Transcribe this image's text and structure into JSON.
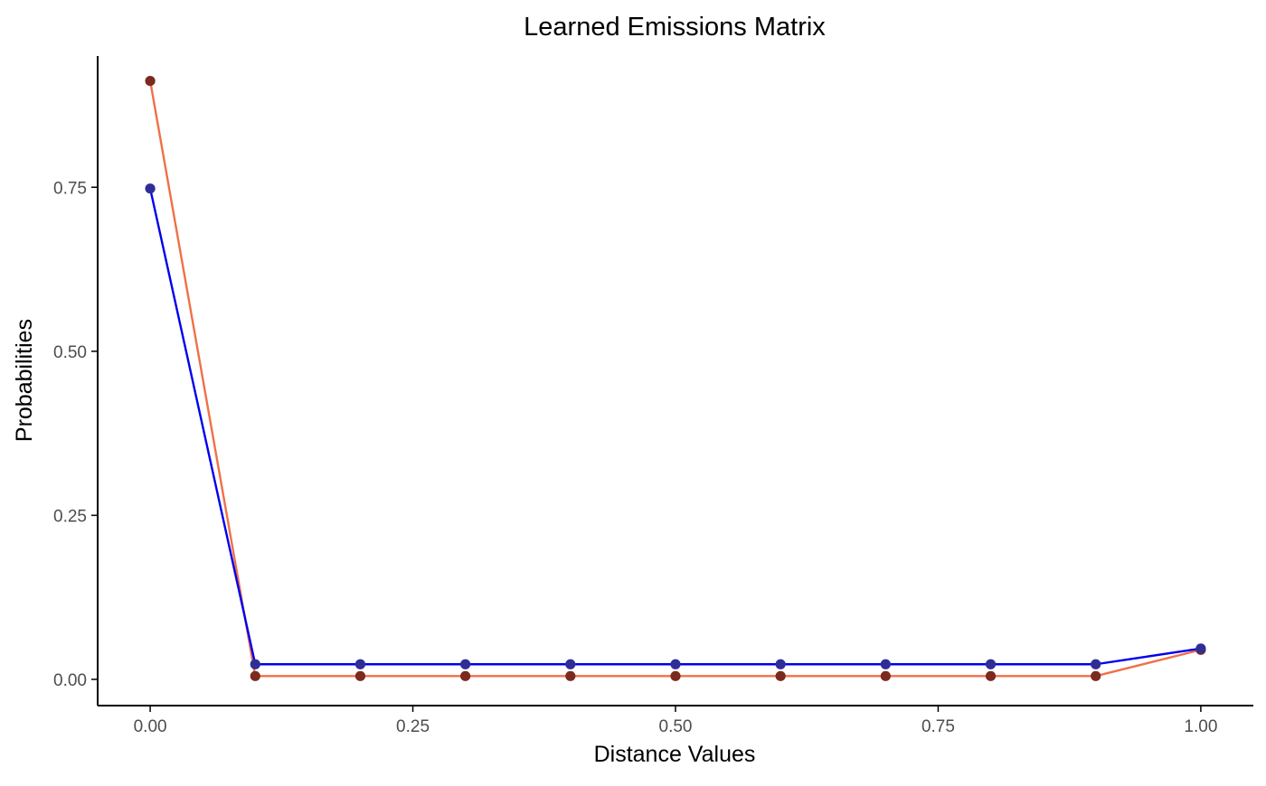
{
  "chart_data": {
    "type": "line",
    "title": "Learned Emissions Matrix",
    "xlabel": "Distance Values",
    "ylabel": "Probabilities",
    "xlim": [
      -0.05,
      1.05
    ],
    "ylim": [
      -0.04,
      0.95
    ],
    "x_ticks": [
      0.0,
      0.25,
      0.5,
      0.75,
      1.0
    ],
    "x_tick_labels": [
      "0.00",
      "0.25",
      "0.50",
      "0.75",
      "1.00"
    ],
    "y_ticks": [
      0.0,
      0.25,
      0.5,
      0.75
    ],
    "y_tick_labels": [
      "0.00",
      "0.25",
      "0.50",
      "0.75"
    ],
    "grid": false,
    "x": [
      0.0,
      0.1,
      0.2,
      0.3,
      0.4,
      0.5,
      0.6,
      0.7,
      0.8,
      0.9,
      1.0
    ],
    "series": [
      {
        "line_color": "#f07048",
        "point_color": "#7a2a1e",
        "values": [
          0.912,
          0.005,
          0.005,
          0.005,
          0.005,
          0.005,
          0.005,
          0.005,
          0.005,
          0.005,
          0.045
        ]
      },
      {
        "line_color": "#0000ee",
        "point_color": "#2e2e96",
        "values": [
          0.748,
          0.023,
          0.023,
          0.023,
          0.023,
          0.023,
          0.023,
          0.023,
          0.023,
          0.023,
          0.047
        ]
      }
    ]
  }
}
